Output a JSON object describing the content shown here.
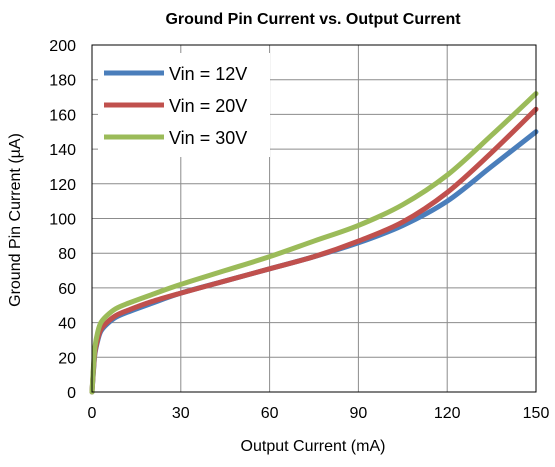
{
  "chart_data": {
    "type": "line",
    "title": "Ground Pin Current vs. Output Current",
    "xlabel": "Output Current (mA)",
    "ylabel": "Ground Pin Current (µA)",
    "xlim": [
      0,
      150
    ],
    "ylim": [
      0,
      200
    ],
    "xticks": [
      0,
      30,
      60,
      90,
      120,
      150
    ],
    "yticks": [
      0,
      20,
      40,
      60,
      80,
      100,
      120,
      140,
      160,
      180,
      200
    ],
    "grid": true,
    "legend_position": "top-left",
    "series": [
      {
        "name": "Vin = 12V",
        "color": "#4a7ebb",
        "x": [
          0,
          0.5,
          1,
          2,
          3,
          5,
          8,
          12,
          20,
          30,
          45,
          60,
          75,
          90,
          105,
          120,
          135,
          150
        ],
        "y": [
          0,
          12,
          22,
          30,
          35,
          39,
          43,
          46,
          51,
          57,
          64,
          71,
          78,
          86,
          96,
          110,
          130,
          150
        ]
      },
      {
        "name": "Vin = 20V",
        "color": "#c0504d",
        "x": [
          0,
          0.5,
          1,
          2,
          3,
          5,
          8,
          12,
          20,
          30,
          45,
          60,
          75,
          90,
          105,
          120,
          135,
          150
        ],
        "y": [
          0,
          13,
          23,
          31,
          36,
          40,
          44,
          47,
          52,
          57,
          64,
          71,
          78,
          87,
          98,
          115,
          138,
          163
        ]
      },
      {
        "name": "Vin = 30V",
        "color": "#9bbb59",
        "x": [
          0,
          0.5,
          1,
          2,
          3,
          5,
          8,
          12,
          20,
          30,
          45,
          60,
          75,
          90,
          105,
          120,
          135,
          150
        ],
        "y": [
          0,
          15,
          26,
          35,
          40,
          44,
          48,
          51,
          56,
          62,
          70,
          78,
          87,
          96,
          108,
          125,
          148,
          172
        ]
      }
    ]
  }
}
